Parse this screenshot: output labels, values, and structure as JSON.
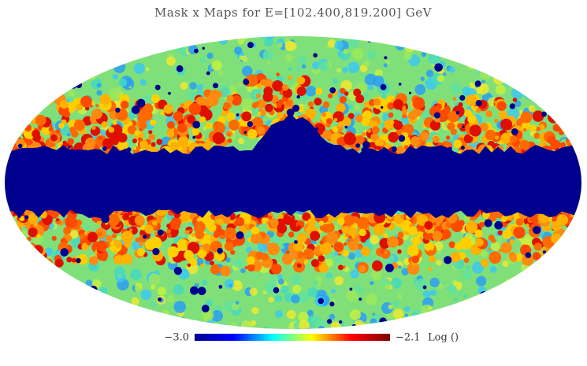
{
  "chart_data": {
    "type": "healpix",
    "title": "Mask x Maps for E=[102.400,819.200] GeV",
    "colorbar": {
      "ticks": [
        {
          "value": -3.0,
          "label": "−3.0"
        },
        {
          "value": -2.1,
          "label": "−2.1"
        }
      ],
      "label": "Log ()",
      "colors": [
        "#00008f",
        "#0000ff",
        "#00ffff",
        "#ffff00",
        "#ff0000",
        "#800000"
      ]
    }
  }
}
